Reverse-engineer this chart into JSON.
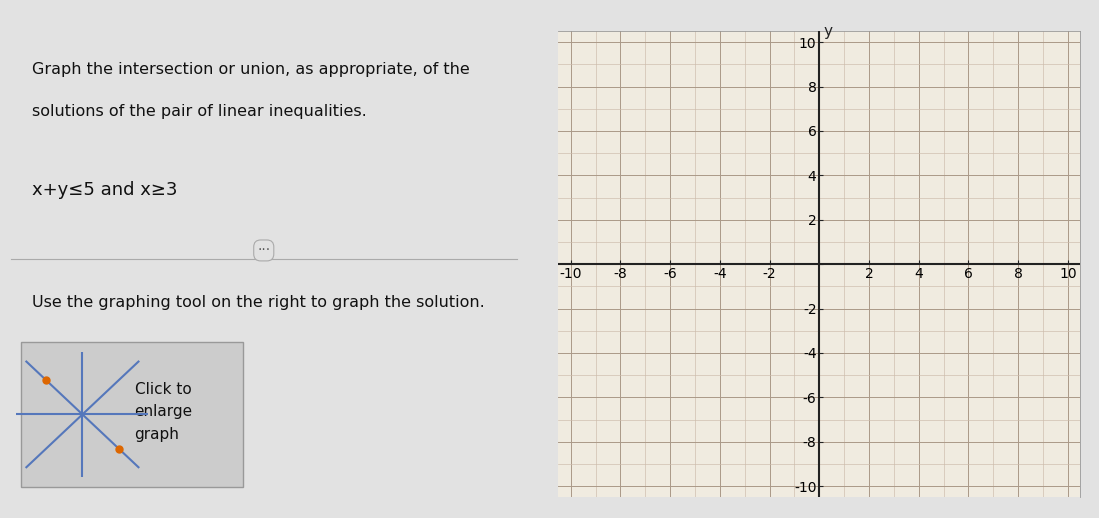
{
  "title_text1": "Graph the intersection or union, as appropriate, of the",
  "title_text2": "solutions of the pair of linear inequalities.",
  "inequality": "x+y≤5 and x≥3",
  "instruction": "Use the graphing tool on the right to graph the solution.",
  "button_text": "Click to\nenlarge\ngraph",
  "xlim": [
    -10.5,
    10.5
  ],
  "ylim": [
    -10.5,
    10.5
  ],
  "grid_minor_color": "#ccbbaa",
  "grid_major_color": "#aa9988",
  "axis_color": "#222222",
  "bg_left": "#e2e2e2",
  "bg_right": "#f0ebe0",
  "bg_graph_panel": "#ffffff",
  "text_color": "#111111",
  "divider_color": "#aaaaaa",
  "btn_bg": "#cccccc",
  "btn_border": "#999999",
  "btn_line_color": "#5577bb",
  "btn_dot_color": "#dd6600"
}
